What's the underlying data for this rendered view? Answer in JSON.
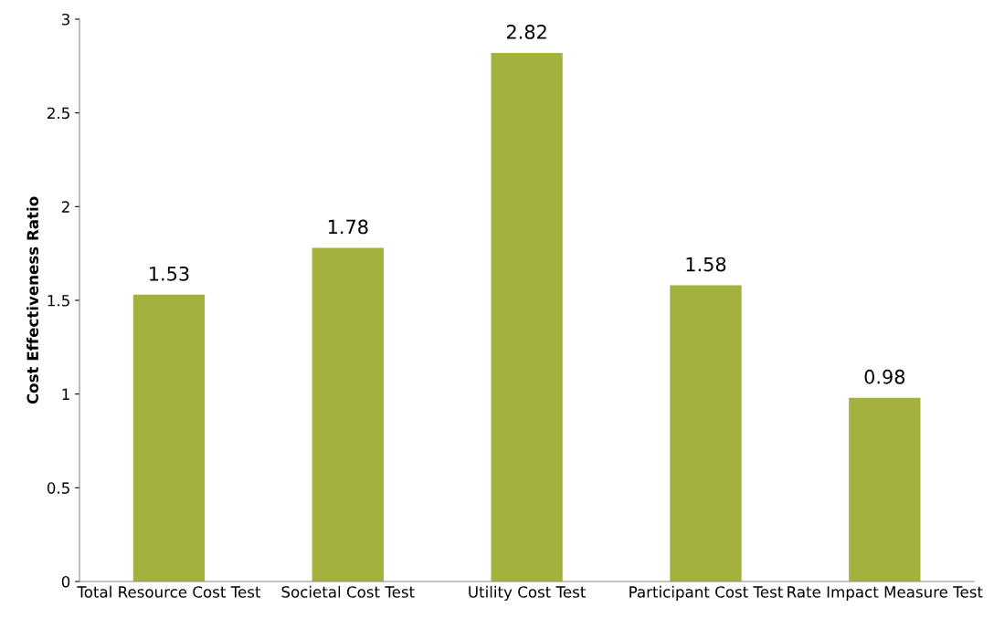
{
  "chart_data": {
    "type": "bar",
    "ylabel": "Cost Effectiveness Ratio",
    "categories": [
      "Total Resource Cost Test",
      "Societal Cost Test",
      "Utility Cost Test",
      "Participant Cost Test",
      "Rate Impact Measure Test"
    ],
    "values": [
      1.53,
      1.78,
      2.82,
      1.58,
      0.98
    ],
    "color": "#a4b23d",
    "ylim": [
      0,
      3
    ],
    "yticks": [
      0,
      0.5,
      1,
      1.5,
      2,
      2.5,
      3
    ],
    "grid": false,
    "data_labels": true
  }
}
